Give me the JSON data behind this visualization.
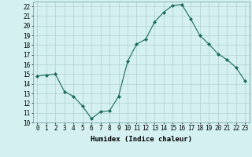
{
  "x": [
    0,
    1,
    2,
    3,
    4,
    5,
    6,
    7,
    8,
    9,
    10,
    11,
    12,
    13,
    14,
    15,
    16,
    17,
    18,
    19,
    20,
    21,
    22,
    23
  ],
  "y": [
    14.8,
    14.9,
    15.0,
    13.2,
    12.7,
    11.7,
    10.4,
    11.1,
    11.2,
    12.7,
    16.3,
    18.1,
    18.6,
    20.4,
    21.4,
    22.1,
    22.2,
    20.7,
    19.0,
    18.1,
    17.1,
    16.5,
    15.7,
    14.3
  ],
  "line_color": "#1a6b5a",
  "marker": "D",
  "marker_size": 2,
  "bg_color": "#d4f0f0",
  "grid_color": "#a8c8c8",
  "xlabel": "Humidex (Indice chaleur)",
  "ylim": [
    10,
    22.5
  ],
  "xlim": [
    -0.5,
    23.5
  ],
  "yticks": [
    10,
    11,
    12,
    13,
    14,
    15,
    16,
    17,
    18,
    19,
    20,
    21,
    22
  ],
  "xticks": [
    0,
    1,
    2,
    3,
    4,
    5,
    6,
    7,
    8,
    9,
    10,
    11,
    12,
    13,
    14,
    15,
    16,
    17,
    18,
    19,
    20,
    21,
    22,
    23
  ],
  "axis_fontsize": 6.5,
  "tick_fontsize": 5.5
}
